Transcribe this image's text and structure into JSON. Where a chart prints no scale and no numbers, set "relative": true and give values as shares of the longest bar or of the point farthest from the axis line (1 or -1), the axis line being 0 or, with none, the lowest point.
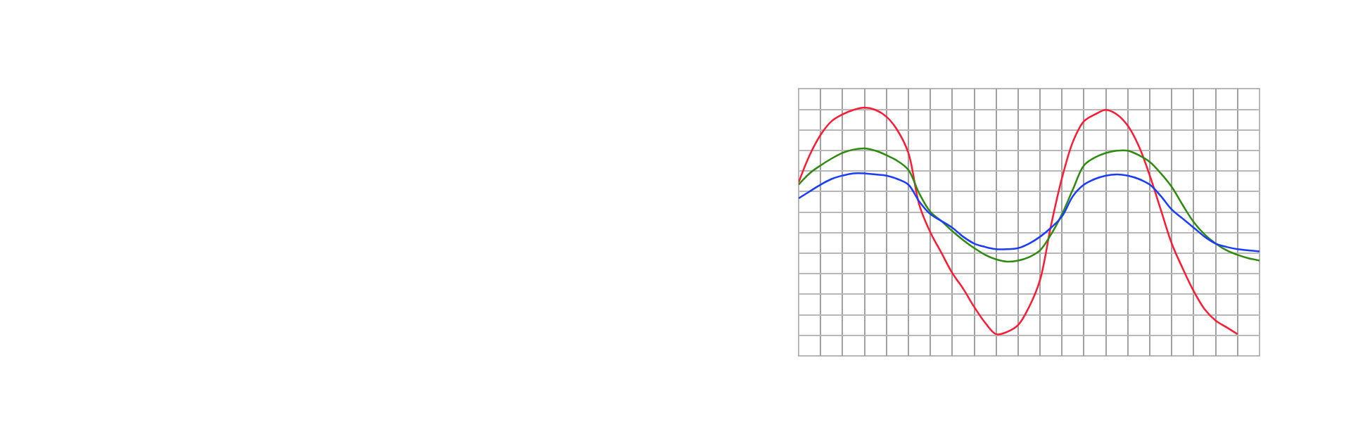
{
  "chart_data": {
    "type": "line",
    "relative": true,
    "grid": true,
    "marker": "none",
    "line_style": "solid",
    "categories": [
      null,
      null,
      null,
      null,
      null,
      null,
      null,
      null,
      null,
      null,
      null,
      null,
      null,
      null,
      null,
      null,
      null,
      null,
      null,
      null,
      null,
      null,
      null,
      null,
      null,
      null,
      null,
      null,
      null,
      null,
      null,
      null,
      null,
      null,
      null,
      null,
      null,
      null,
      null,
      null,
      null,
      null,
      null
    ],
    "series": [
      {
        "color": "#ff1a33",
        "values": [
          0.67,
          0.79,
          0.88,
          0.94,
          0.97,
          0.99,
          1.0,
          0.99,
          0.96,
          0.9,
          0.8,
          0.57,
          0.45,
          0.36,
          0.27,
          0.2,
          0.12,
          0.05,
          0.0,
          0.01,
          0.04,
          0.12,
          0.24,
          0.48,
          0.69,
          0.85,
          0.94,
          0.97,
          0.99,
          0.97,
          0.92,
          0.83,
          0.7,
          0.55,
          0.4,
          0.29,
          0.19,
          0.11,
          0.06,
          0.03,
          0.0,
          null,
          null
        ]
      },
      {
        "color": "#2e8b0f",
        "values": [
          0.66,
          0.71,
          0.745,
          0.775,
          0.8,
          0.815,
          0.82,
          0.81,
          0.79,
          0.765,
          0.725,
          0.62,
          0.54,
          0.5,
          0.455,
          0.415,
          0.38,
          0.35,
          0.33,
          0.32,
          0.325,
          0.34,
          0.37,
          0.44,
          0.53,
          0.64,
          0.745,
          0.78,
          0.8,
          0.81,
          0.81,
          0.79,
          0.76,
          0.71,
          0.65,
          0.57,
          0.495,
          0.44,
          0.4,
          0.37,
          0.35,
          0.335,
          0.325
        ]
      },
      {
        "color": "#1a3cff",
        "values": [
          0.6,
          0.63,
          0.66,
          0.685,
          0.7,
          0.71,
          0.71,
          0.705,
          0.7,
          0.685,
          0.66,
          0.585,
          0.53,
          0.5,
          0.47,
          0.43,
          0.4,
          0.385,
          0.375,
          0.375,
          0.38,
          0.4,
          0.43,
          0.47,
          0.52,
          0.61,
          0.66,
          0.685,
          0.7,
          0.705,
          0.7,
          0.685,
          0.66,
          0.61,
          0.55,
          0.51,
          0.47,
          0.43,
          0.4,
          0.385,
          0.375,
          0.37,
          0.365
        ]
      }
    ]
  }
}
